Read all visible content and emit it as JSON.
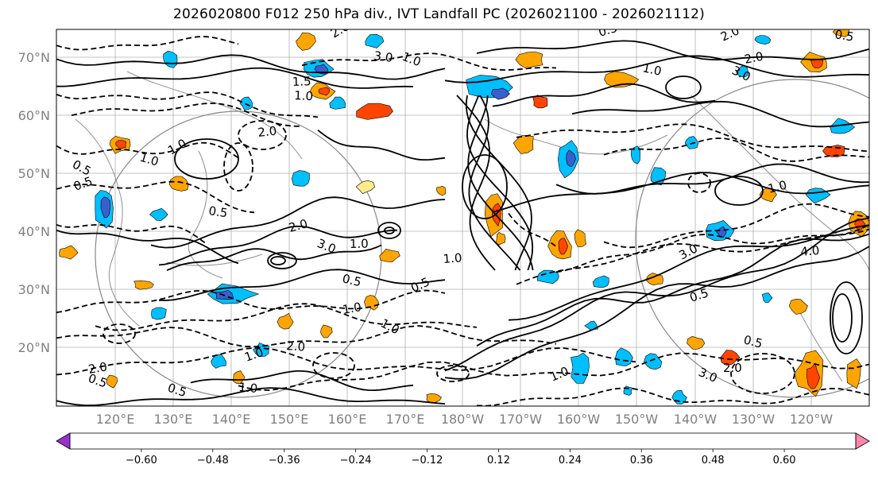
{
  "title": "2026020800 F012 250 hPa div., IVT Landfall PC (2026021100 - 2026021112)",
  "map": {
    "lat_ticks": [
      "70°N",
      "60°N",
      "50°N",
      "40°N",
      "30°N",
      "20°N"
    ],
    "lon_ticks": [
      "120°E",
      "130°E",
      "140°E",
      "150°E",
      "160°E",
      "170°E",
      "180°W",
      "170°W",
      "160°W",
      "150°W",
      "140°W",
      "130°W",
      "120°W"
    ],
    "contour_labels": [
      "2.0",
      "3.0",
      "0.5",
      "1.0",
      "1.5",
      "2.0",
      "1.0",
      "2.0",
      "3.0",
      "1.0",
      "0.5",
      "1.0",
      "2.0",
      "1.0",
      "0.5",
      "2.0",
      "3.0",
      "1.0",
      "0.5",
      "0.5",
      "1.0",
      "1.0",
      "2.0",
      "1.0",
      "0.5",
      "4.0",
      "3.0",
      "0.5",
      "1.0",
      "3.0",
      "2.0",
      "1.0",
      "0.5",
      "2.0",
      "0.5",
      "1.0",
      "0.5",
      "0.5",
      "1.0"
    ]
  },
  "colorbar": {
    "colors": [
      "#9932cc",
      "#00008b",
      "#3a5fcd",
      "#00bfff",
      "#b0e2ff",
      "#ffffff",
      "#ffeb8a",
      "#ffa500",
      "#ff4500",
      "#b22222",
      "#ff88aa"
    ],
    "labels": [
      "−0.60",
      "−0.48",
      "−0.36",
      "−0.24",
      "−0.12",
      "0.12",
      "0.24",
      "0.36",
      "0.48",
      "0.60"
    ]
  }
}
